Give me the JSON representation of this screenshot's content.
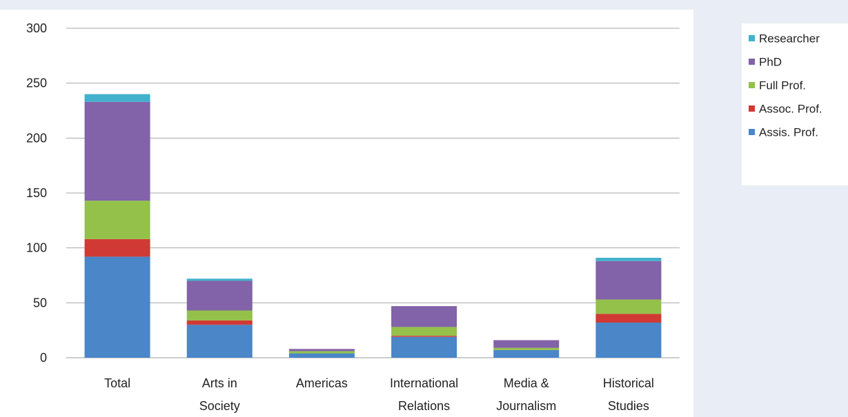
{
  "chart_data": {
    "type": "bar",
    "stacked": true,
    "categories": [
      [
        "Total"
      ],
      [
        "Arts in",
        "Society"
      ],
      [
        "Americas"
      ],
      [
        "International",
        "Relations"
      ],
      [
        "Media &",
        "Journalism"
      ],
      [
        "Historical",
        "Studies"
      ]
    ],
    "series": [
      {
        "name": "Assis. Prof.",
        "color": "#4a86c8",
        "values": [
          92,
          30,
          4,
          19,
          7,
          32
        ]
      },
      {
        "name": "Assoc. Prof.",
        "color": "#d13a34",
        "values": [
          16,
          4,
          0,
          1,
          0,
          8
        ]
      },
      {
        "name": "Full Prof.",
        "color": "#94c14a",
        "values": [
          35,
          9,
          2,
          8,
          2,
          13
        ]
      },
      {
        "name": "PhD",
        "color": "#8262a8",
        "values": [
          90,
          27,
          2,
          19,
          7,
          35
        ]
      },
      {
        "name": "Researcher",
        "color": "#43b0cc",
        "values": [
          7,
          2,
          0,
          0,
          0,
          3
        ]
      }
    ],
    "legend_order": [
      "Researcher",
      "PhD",
      "Full Prof.",
      "Assoc. Prof.",
      "Assis. Prof."
    ],
    "ylim": [
      0,
      300
    ],
    "yticks": [
      0,
      50,
      100,
      150,
      200,
      250,
      300
    ],
    "grid": true,
    "legend_position": "right",
    "title": "",
    "xlabel": "",
    "ylabel": ""
  }
}
